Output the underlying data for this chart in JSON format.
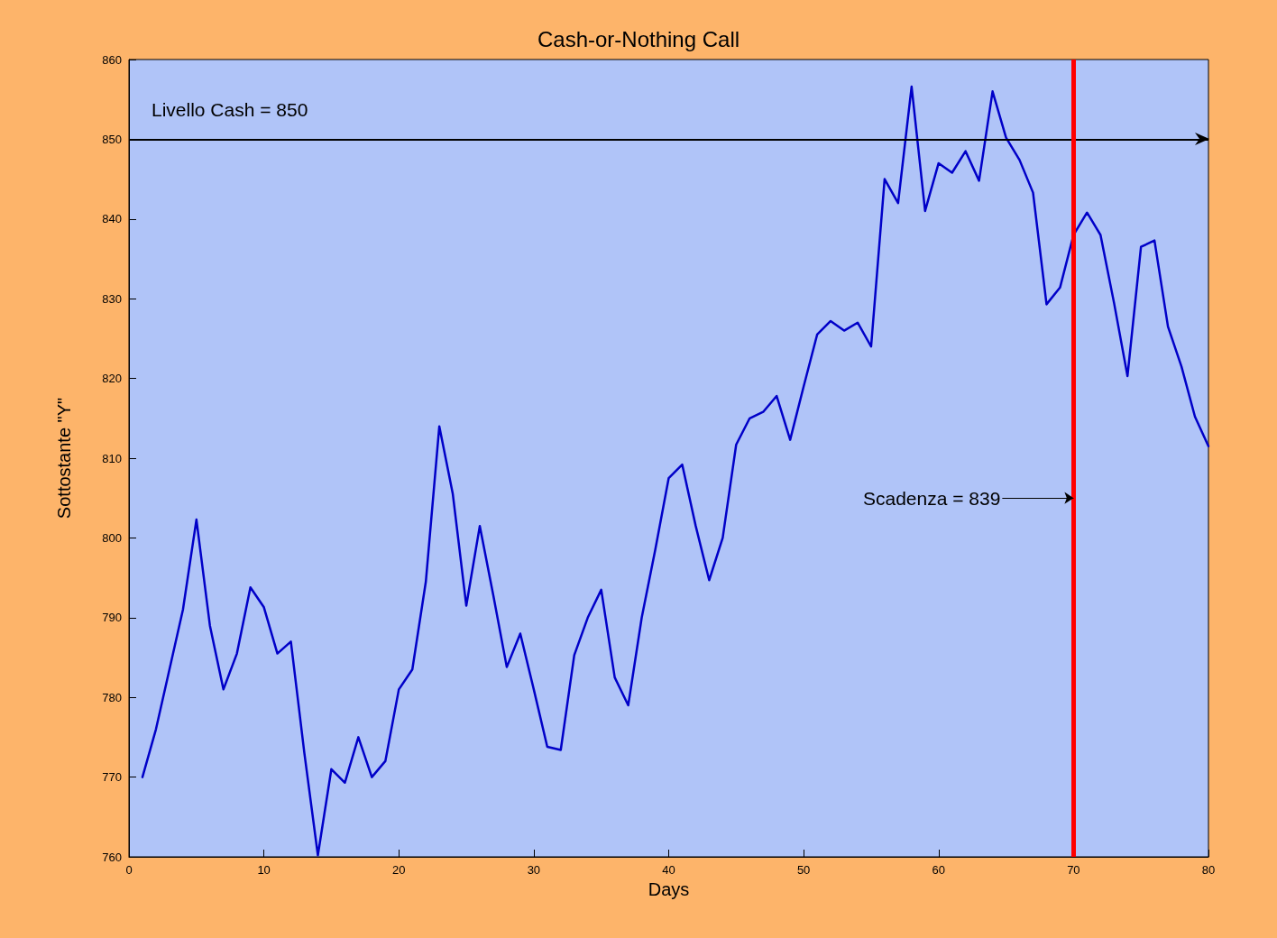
{
  "chart_data": {
    "type": "line",
    "title": "Cash-or-Nothing Call",
    "xlabel": "Days",
    "ylabel": "Sottostante \"Y\"",
    "x": [
      1,
      2,
      3,
      4,
      5,
      6,
      7,
      8,
      9,
      10,
      11,
      12,
      13,
      14,
      15,
      16,
      17,
      18,
      19,
      20,
      21,
      22,
      23,
      24,
      25,
      26,
      27,
      28,
      29,
      30,
      31,
      32,
      33,
      34,
      35,
      36,
      37,
      38,
      39,
      40,
      41,
      42,
      43,
      44,
      45,
      46,
      47,
      48,
      49,
      50,
      51,
      52,
      53,
      54,
      55,
      56,
      57,
      58,
      59,
      60,
      61,
      62,
      63,
      64,
      65,
      66,
      67,
      68,
      69,
      70,
      71,
      72,
      73,
      74,
      75,
      76,
      77,
      78,
      79,
      80
    ],
    "series": [
      {
        "color": "#0000c8",
        "values": [
          770,
          776,
          783.5,
          791,
          802.3,
          789,
          781,
          785.5,
          793.8,
          791.3,
          785.5,
          787,
          773,
          760.2,
          771,
          769.3,
          775,
          770,
          772,
          781,
          783.5,
          794.5,
          814,
          805.5,
          791.5,
          801.5,
          792.8,
          783.8,
          788,
          781,
          773.8,
          773.4,
          785.3,
          790,
          793.5,
          782.5,
          779,
          790,
          798.5,
          807.5,
          809.2,
          801.5,
          794.7,
          800,
          811.7,
          815,
          815.8,
          817.8,
          812.3,
          819,
          825.5,
          827.2,
          826,
          827,
          824,
          845,
          842,
          856.6,
          841,
          847,
          845.8,
          848.5,
          844.8,
          856,
          850.2,
          847.4,
          843.3,
          829.3,
          831.4,
          838,
          840.8,
          838,
          829.5,
          820.3,
          836.5,
          837.3,
          826.5,
          821.5,
          815.2,
          811.5
        ]
      }
    ],
    "xlim": [
      0,
      80
    ],
    "xticks": [
      0,
      10,
      20,
      30,
      40,
      50,
      60,
      70,
      80
    ],
    "ylim": [
      760,
      860
    ],
    "yticks": [
      760,
      770,
      780,
      790,
      800,
      810,
      820,
      830,
      840,
      850,
      860
    ],
    "grid": false,
    "marker": "none",
    "line_style": "solid",
    "ref_lines": [
      {
        "axis": "y",
        "value": 850,
        "label": "Livello Cash = 850",
        "color": "#000000"
      },
      {
        "axis": "x",
        "value": 70,
        "color": "#ff0000"
      }
    ],
    "annotations": [
      {
        "text": "Scadenza = 839",
        "x": 70,
        "y": 805
      }
    ]
  }
}
